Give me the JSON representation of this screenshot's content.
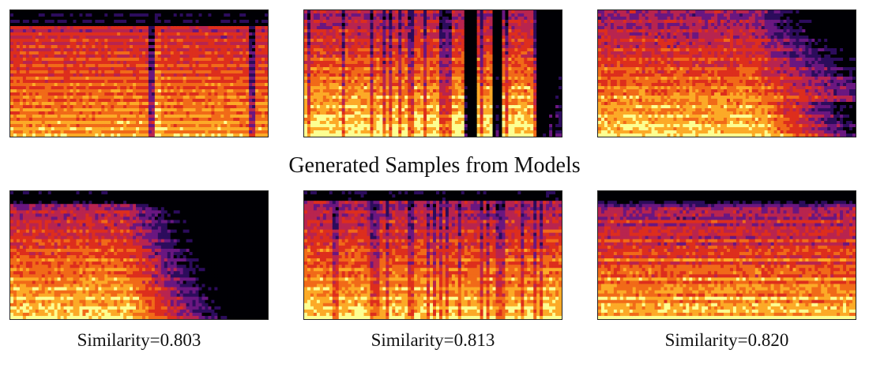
{
  "heading": "Generated Samples from Models",
  "captions": [
    "Similarity=0.803",
    "Similarity=0.813",
    "Similarity=0.820"
  ],
  "colormap": [
    "#000004",
    "#2c0c5c",
    "#6a1780",
    "#b8244f",
    "#dd2e1d",
    "#f16a18",
    "#fcaa27",
    "#fcff92"
  ],
  "panels": [
    {
      "id": "top-1",
      "pattern": "piano"
    },
    {
      "id": "top-2",
      "pattern": "dense-with-gaps"
    },
    {
      "id": "top-3",
      "pattern": "fade-right"
    },
    {
      "id": "bot-1",
      "pattern": "fade-mid"
    },
    {
      "id": "bot-2",
      "pattern": "dense"
    },
    {
      "id": "bot-3",
      "pattern": "dense-harmonic"
    }
  ]
}
